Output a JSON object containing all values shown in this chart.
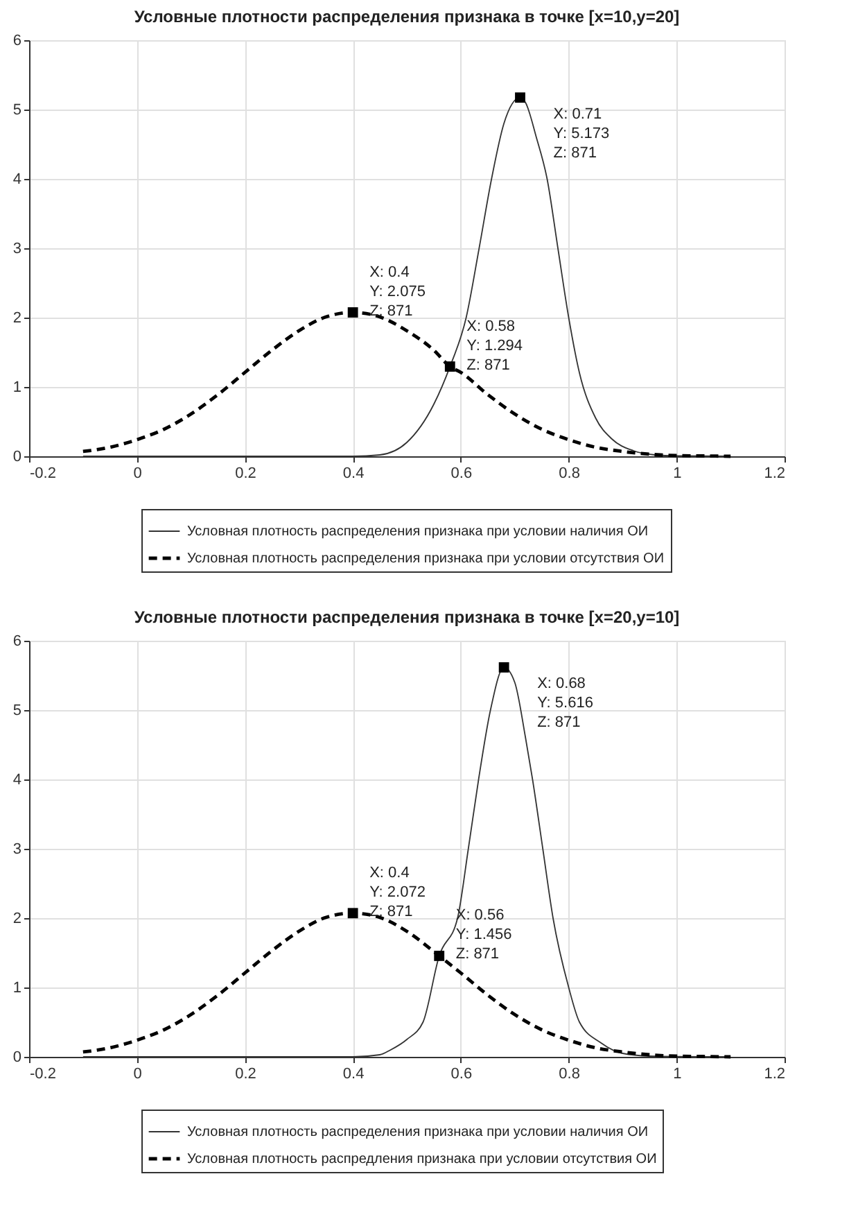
{
  "chart_data": [
    {
      "type": "line",
      "title": "Условные плотности распределения признака в точке [x=10,y=20]",
      "xlim": [
        -0.2,
        1.2
      ],
      "xticks": [
        -0.2,
        0,
        0.2,
        0.4,
        0.6,
        0.8,
        1,
        1.2
      ],
      "ylim": [
        0,
        6
      ],
      "yticks": [
        0,
        1,
        2,
        3,
        4,
        5,
        6
      ],
      "grid": true,
      "legend": "bottom",
      "marker": "none",
      "series": [
        {
          "name": "Условная плотность распределения признака при условии наличия ОИ",
          "color": "#333333",
          "line_style": "solid",
          "x": [
            -0.1,
            0.2,
            0.4,
            0.45,
            0.5,
            0.55,
            0.58,
            0.61,
            0.634,
            0.657,
            0.68,
            0.71,
            0.72,
            0.74,
            0.76,
            0.78,
            0.8,
            0.82,
            0.85,
            0.88,
            0.92,
            0.96,
            1.0,
            1.1
          ],
          "values": [
            0,
            0,
            0,
            0.02,
            0.2,
            0.75,
            1.294,
            2.0,
            3.0,
            4.0,
            4.8,
            5.173,
            5.1,
            4.6,
            4.0,
            3.0,
            2.0,
            1.2,
            0.55,
            0.25,
            0.08,
            0.02,
            0.005,
            0
          ]
        },
        {
          "name": "Условная плотность распределения признака при условии отсутствия ОИ",
          "color": "#000000",
          "line_style": "dashed",
          "x": [
            -0.1,
            -0.05,
            0,
            0.05,
            0.1,
            0.15,
            0.2,
            0.25,
            0.3,
            0.35,
            0.4,
            0.45,
            0.5,
            0.55,
            0.58,
            0.6,
            0.65,
            0.7,
            0.75,
            0.8,
            0.85,
            0.9,
            0.95,
            1.0,
            1.05,
            1.1
          ],
          "values": [
            0.07,
            0.13,
            0.24,
            0.39,
            0.61,
            0.89,
            1.21,
            1.53,
            1.81,
            2.01,
            2.075,
            2.01,
            1.81,
            1.53,
            1.294,
            1.21,
            0.89,
            0.61,
            0.39,
            0.24,
            0.13,
            0.07,
            0.03,
            0.01,
            0.005,
            0
          ]
        }
      ],
      "annotations": [
        {
          "text": "X: 0.71\nY: 5.173\nZ: 871",
          "x": 0.71,
          "y": 5.173
        },
        {
          "text": "X: 0.4\nY: 2.075\nZ: 871",
          "x": 0.4,
          "y": 2.075
        },
        {
          "text": "X: 0.58\nY: 1.294\nZ: 871",
          "x": 0.58,
          "y": 1.294
        }
      ]
    },
    {
      "type": "line",
      "title": "Условные плотности распределения признака в точке [x=20,y=10]",
      "xlim": [
        -0.2,
        1.2
      ],
      "xticks": [
        -0.2,
        0,
        0.2,
        0.4,
        0.6,
        0.8,
        1,
        1.2
      ],
      "ylim": [
        0,
        6
      ],
      "yticks": [
        0,
        1,
        2,
        3,
        4,
        5,
        6
      ],
      "grid": true,
      "legend": "bottom",
      "marker": "none",
      "series": [
        {
          "name": "Условная плотность распределения признака при условии наличия ОИ",
          "color": "#333333",
          "line_style": "solid",
          "x": [
            -0.1,
            0.2,
            0.4,
            0.45,
            0.47,
            0.5,
            0.53,
            0.56,
            0.594,
            0.614,
            0.633,
            0.655,
            0.68,
            0.7,
            0.72,
            0.733,
            0.752,
            0.771,
            0.8,
            0.82,
            0.86,
            0.9,
            0.95,
            1.0,
            1.1
          ],
          "values": [
            0,
            0,
            0,
            0.03,
            0.1,
            0.25,
            0.5,
            1.456,
            2.0,
            3.0,
            4.0,
            5.0,
            5.616,
            5.4,
            4.6,
            4.0,
            3.0,
            2.0,
            1.0,
            0.5,
            0.2,
            0.05,
            0.01,
            0.003,
            0
          ]
        },
        {
          "name": "Условная плотность распредления признака при условии отсутствия ОИ",
          "color": "#000000",
          "line_style": "dashed",
          "x": [
            -0.1,
            -0.05,
            0,
            0.05,
            0.1,
            0.15,
            0.2,
            0.25,
            0.3,
            0.35,
            0.4,
            0.45,
            0.5,
            0.56,
            0.6,
            0.65,
            0.7,
            0.75,
            0.8,
            0.85,
            0.9,
            0.95,
            1.0,
            1.05,
            1.1
          ],
          "values": [
            0.07,
            0.13,
            0.24,
            0.39,
            0.61,
            0.89,
            1.21,
            1.53,
            1.81,
            2.01,
            2.072,
            2.01,
            1.81,
            1.456,
            1.21,
            0.89,
            0.61,
            0.39,
            0.24,
            0.13,
            0.07,
            0.03,
            0.01,
            0.005,
            0
          ]
        }
      ],
      "annotations": [
        {
          "text": "X: 0.68\nY: 5.616\nZ: 871",
          "x": 0.68,
          "y": 5.616
        },
        {
          "text": "X: 0.4\nY: 2.072\nZ: 871",
          "x": 0.4,
          "y": 2.072
        },
        {
          "text": "X: 0.56\nY: 1.456\nZ: 871",
          "x": 0.56,
          "y": 1.456
        }
      ]
    }
  ]
}
